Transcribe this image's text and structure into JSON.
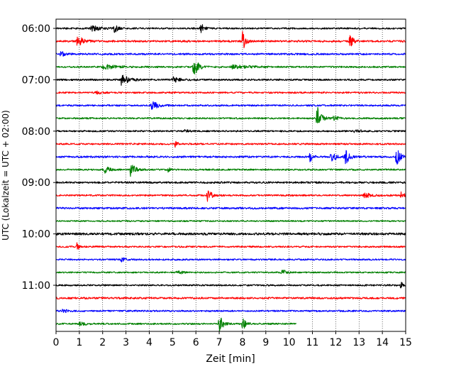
{
  "chart_data": {
    "type": "line",
    "xlabel": "Zeit  [min]",
    "ylabel": "UTC (Lokalzeit = UTC + 02:00)",
    "xlim": [
      0,
      15
    ],
    "x_ticks": [
      0,
      1,
      2,
      3,
      4,
      5,
      6,
      7,
      8,
      9,
      10,
      11,
      12,
      13,
      14,
      15
    ],
    "y_tick_labels": [
      "06:00",
      "07:00",
      "08:00",
      "09:00",
      "10:00",
      "11:00"
    ],
    "y_tick_rows": [
      0,
      4,
      8,
      12,
      16,
      20
    ],
    "grid": "vertical dotted at every minute",
    "row_colors": [
      "#000000",
      "#ff0000",
      "#0000ff",
      "#008000"
    ],
    "traces": [
      {
        "row": 0,
        "start_min": 0,
        "end_min": 15,
        "base_amp": 1.1,
        "events": [
          {
            "t": 1.5,
            "amp": 4,
            "w": 0.7
          },
          {
            "t": 2.5,
            "amp": 6,
            "w": 0.3
          },
          {
            "t": 6.2,
            "amp": 7,
            "w": 0.3
          }
        ]
      },
      {
        "row": 1,
        "start_min": 0,
        "end_min": 15,
        "base_amp": 1.3,
        "events": [
          {
            "t": 0.9,
            "amp": 8,
            "w": 0.5
          },
          {
            "t": 8.0,
            "amp": 13,
            "w": 0.25
          },
          {
            "t": 12.6,
            "amp": 8,
            "w": 0.35
          }
        ]
      },
      {
        "row": 2,
        "start_min": 0,
        "end_min": 15,
        "base_amp": 1.2,
        "events": [
          {
            "t": 0.2,
            "amp": 4,
            "w": 0.3
          }
        ]
      },
      {
        "row": 3,
        "start_min": 0,
        "end_min": 15,
        "base_amp": 1.1,
        "events": [
          {
            "t": 2.0,
            "amp": 3,
            "w": 1.2
          },
          {
            "t": 5.9,
            "amp": 15,
            "w": 0.35
          },
          {
            "t": 7.5,
            "amp": 2.5,
            "w": 1.5
          }
        ]
      },
      {
        "row": 4,
        "start_min": 0,
        "end_min": 15,
        "base_amp": 1.2,
        "events": [
          {
            "t": 2.8,
            "amp": 7,
            "w": 0.6
          },
          {
            "t": 5.0,
            "amp": 3.5,
            "w": 0.6
          }
        ]
      },
      {
        "row": 5,
        "start_min": 0,
        "end_min": 15,
        "base_amp": 1.1,
        "events": [
          {
            "t": 1.7,
            "amp": 2,
            "w": 0.5
          }
        ]
      },
      {
        "row": 6,
        "start_min": 0,
        "end_min": 15,
        "base_amp": 1.1,
        "events": [
          {
            "t": 4.1,
            "amp": 6,
            "w": 0.5
          }
        ]
      },
      {
        "row": 7,
        "start_min": 0,
        "end_min": 15,
        "base_amp": 1.1,
        "events": [
          {
            "t": 11.2,
            "amp": 17,
            "w": 0.35
          },
          {
            "t": 11.9,
            "amp": 3,
            "w": 0.4
          }
        ]
      },
      {
        "row": 8,
        "start_min": 0,
        "end_min": 15,
        "base_amp": 1.1,
        "events": [
          {
            "t": 5.5,
            "amp": 1.8,
            "w": 0.4
          },
          {
            "t": 12.8,
            "amp": 4.5,
            "w": 0.4
          }
        ]
      },
      {
        "row": 9,
        "start_min": 0,
        "end_min": 15,
        "base_amp": 1.1,
        "events": [
          {
            "t": 5.1,
            "amp": 5,
            "w": 0.2
          }
        ]
      },
      {
        "row": 10,
        "start_min": 0,
        "end_min": 15,
        "base_amp": 1.3,
        "events": [
          {
            "t": 10.9,
            "amp": 7,
            "w": 0.2
          },
          {
            "t": 11.8,
            "amp": 6,
            "w": 0.5
          },
          {
            "t": 12.4,
            "amp": 11,
            "w": 0.35
          },
          {
            "t": 14.6,
            "amp": 11,
            "w": 0.35
          }
        ]
      },
      {
        "row": 11,
        "start_min": 0,
        "end_min": 15,
        "base_amp": 1.1,
        "events": [
          {
            "t": 2.1,
            "amp": 5,
            "w": 0.35
          },
          {
            "t": 3.2,
            "amp": 11,
            "w": 0.35
          },
          {
            "t": 4.8,
            "amp": 4,
            "w": 0.2
          }
        ]
      },
      {
        "row": 12,
        "start_min": 0,
        "end_min": 15,
        "base_amp": 1.3,
        "events": []
      },
      {
        "row": 13,
        "start_min": 0,
        "end_min": 15,
        "base_amp": 1.1,
        "events": [
          {
            "t": 6.5,
            "amp": 10,
            "w": 0.3
          },
          {
            "t": 13.2,
            "amp": 3.5,
            "w": 0.6
          },
          {
            "t": 14.8,
            "amp": 4.5,
            "w": 0.3
          }
        ]
      },
      {
        "row": 14,
        "start_min": 0,
        "end_min": 15,
        "base_amp": 1.3,
        "events": []
      },
      {
        "row": 15,
        "start_min": 0,
        "end_min": 15,
        "base_amp": 1.0,
        "events": []
      },
      {
        "row": 16,
        "start_min": 0,
        "end_min": 15,
        "base_amp": 1.6,
        "events": []
      },
      {
        "row": 17,
        "start_min": 0,
        "end_min": 15,
        "base_amp": 1.1,
        "events": [
          {
            "t": 0.9,
            "amp": 5,
            "w": 0.15
          }
        ]
      },
      {
        "row": 18,
        "start_min": 0,
        "end_min": 15,
        "base_amp": 1.1,
        "events": [
          {
            "t": 2.8,
            "amp": 2.5,
            "w": 0.5
          }
        ]
      },
      {
        "row": 19,
        "start_min": 0,
        "end_min": 15,
        "base_amp": 1.0,
        "events": [
          {
            "t": 5.2,
            "amp": 2,
            "w": 0.5
          },
          {
            "t": 9.7,
            "amp": 4.5,
            "w": 0.3
          }
        ]
      },
      {
        "row": 20,
        "start_min": 0,
        "end_min": 15,
        "base_amp": 1.1,
        "events": [
          {
            "t": 14.8,
            "amp": 5,
            "w": 0.2
          }
        ]
      },
      {
        "row": 21,
        "start_min": 0,
        "end_min": 15,
        "base_amp": 1.3,
        "events": []
      },
      {
        "row": 22,
        "start_min": 0,
        "end_min": 15,
        "base_amp": 1.1,
        "events": [
          {
            "t": 0.3,
            "amp": 3,
            "w": 0.3
          }
        ]
      },
      {
        "row": 23,
        "start_min": 0,
        "end_min": 10.3,
        "base_amp": 1.1,
        "events": [
          {
            "t": 1.0,
            "amp": 2,
            "w": 0.6
          },
          {
            "t": 7.0,
            "amp": 13,
            "w": 0.3
          },
          {
            "t": 8.0,
            "amp": 9,
            "w": 0.25
          }
        ]
      }
    ]
  }
}
